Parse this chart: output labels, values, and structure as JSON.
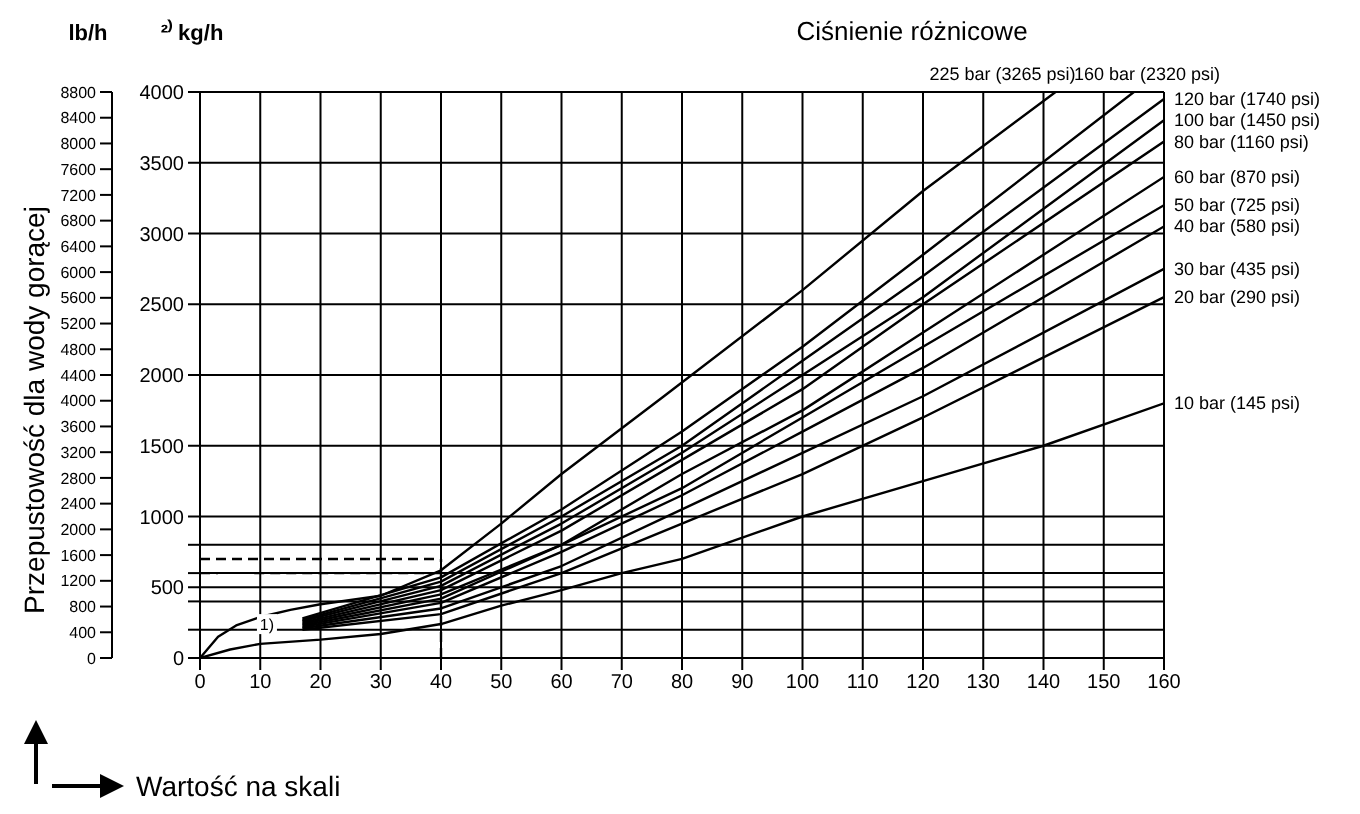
{
  "chart_data": {
    "type": "line",
    "legend_title": "Ciśnienie różnicowe",
    "xlabel": "Wartość na skali",
    "ylabel": "Przepustowość dla wody gorącej",
    "annotations": [
      "lb/h",
      "²⁾ kg/h",
      {
        "text": "1)",
        "x": 6,
        "y": 600
      }
    ],
    "xlim": [
      0,
      160
    ],
    "xticks": [
      0,
      10,
      20,
      30,
      40,
      50,
      60,
      70,
      80,
      90,
      100,
      110,
      120,
      130,
      140,
      150,
      160
    ],
    "ylim": [
      0,
      8800
    ],
    "yticks": [
      0,
      400,
      800,
      1200,
      1600,
      2000,
      2400,
      2800,
      3200,
      3600,
      4000,
      4400,
      4800,
      5200,
      5600,
      6000,
      6400,
      6800,
      7200,
      7600,
      8000,
      8400,
      8800
    ],
    "y2lim": [
      0,
      4000
    ],
    "y2ticks": [
      0,
      {
        "value": 200,
        "label": null
      },
      {
        "value": 400,
        "label": null
      },
      500,
      {
        "value": 600,
        "label": null
      },
      {
        "value": 800,
        "label": null
      },
      1000,
      1500,
      2000,
      2500,
      3000,
      3500,
      4000
    ],
    "grid": true,
    "legend": false,
    "marker": "none",
    "series": [
      {
        "name": "225 bar (3265 psi)",
        "color": "#000000",
        "axis": "y2",
        "x": [
          0,
          3,
          6,
          10,
          15,
          20,
          30,
          40,
          50,
          60,
          77,
          100,
          120,
          142
        ],
        "values": [
          0,
          150,
          230,
          290,
          340,
          380,
          440,
          620,
          950,
          1300,
          1850,
          2600,
          3300,
          4000
        ]
      },
      {
        "name": "160 bar (2320 psi)",
        "color": "#000000",
        "axis": "y2",
        "x": [
          17,
          40,
          60,
          80,
          100,
          120,
          155
        ],
        "values": [
          280,
          570,
          1050,
          1600,
          2200,
          2850,
          4000
        ]
      },
      {
        "name": "120 bar (1740 psi)",
        "color": "#000000",
        "axis": "y2",
        "x": [
          17,
          40,
          60,
          80,
          100,
          120,
          160
        ],
        "values": [
          270,
          540,
          1000,
          1500,
          2100,
          2700,
          3950
        ]
      },
      {
        "name": "100 bar (1450 psi)",
        "color": "#000000",
        "axis": "y2",
        "x": [
          17,
          40,
          60,
          80,
          100,
          120,
          160
        ],
        "values": [
          260,
          510,
          950,
          1450,
          2000,
          2550,
          3800
        ]
      },
      {
        "name": "80 bar (1160 psi)",
        "color": "#000000",
        "axis": "y2",
        "x": [
          17,
          40,
          60,
          80,
          100,
          120,
          160
        ],
        "values": [
          250,
          480,
          900,
          1400,
          1900,
          2500,
          3650
        ]
      },
      {
        "name": "60 bar (870 psi)",
        "color": "#000000",
        "axis": "y2",
        "x": [
          17,
          40,
          60,
          80,
          100,
          120,
          160
        ],
        "values": [
          240,
          450,
          800,
          1300,
          1750,
          2300,
          3400
        ]
      },
      {
        "name": "50 bar (725 psi)",
        "color": "#000000",
        "axis": "y2",
        "x": [
          17,
          40,
          60,
          80,
          100,
          120,
          160
        ],
        "values": [
          230,
          420,
          800,
          1200,
          1700,
          2200,
          3200
        ]
      },
      {
        "name": "40 bar (580 psi)",
        "color": "#000000",
        "axis": "y2",
        "x": [
          17,
          40,
          60,
          80,
          100,
          120,
          160
        ],
        "values": [
          220,
          390,
          750,
          1150,
          1600,
          2050,
          3050
        ]
      },
      {
        "name": "30 bar (435 psi)",
        "color": "#000000",
        "axis": "y2",
        "x": [
          17,
          40,
          60,
          80,
          100,
          120,
          160
        ],
        "values": [
          210,
          350,
          650,
          1050,
          1450,
          1850,
          2750
        ]
      },
      {
        "name": "20 bar (290 psi)",
        "color": "#000000",
        "axis": "y2",
        "x": [
          17,
          40,
          60,
          80,
          100,
          120,
          160
        ],
        "values": [
          200,
          310,
          600,
          950,
          1300,
          1700,
          2550
        ]
      },
      {
        "name": "10 bar (145 psi)",
        "color": "#000000",
        "axis": "y2",
        "x": [
          0,
          5,
          10,
          20,
          30,
          40,
          50,
          60,
          70,
          80,
          100,
          120,
          140,
          160
        ],
        "values": [
          0,
          60,
          100,
          130,
          170,
          240,
          370,
          480,
          600,
          700,
          1000,
          1250,
          1500,
          1800
        ]
      },
      {
        "color": "#000000",
        "axis": "y2",
        "line_style": "dashed",
        "x": [
          0,
          40
        ],
        "values": [
          700,
          700
        ]
      },
      {
        "color": "#000000",
        "axis": "y2",
        "line_style": "dashed",
        "x": [
          0,
          3,
          6,
          9,
          40
        ],
        "values": [
          600,
          600,
          null,
          600,
          600
        ]
      },
      {
        "color": "#000000",
        "axis": "y2",
        "line_style": "dashed",
        "x": [
          40,
          40
        ],
        "values": [
          0,
          700
        ]
      }
    ]
  }
}
